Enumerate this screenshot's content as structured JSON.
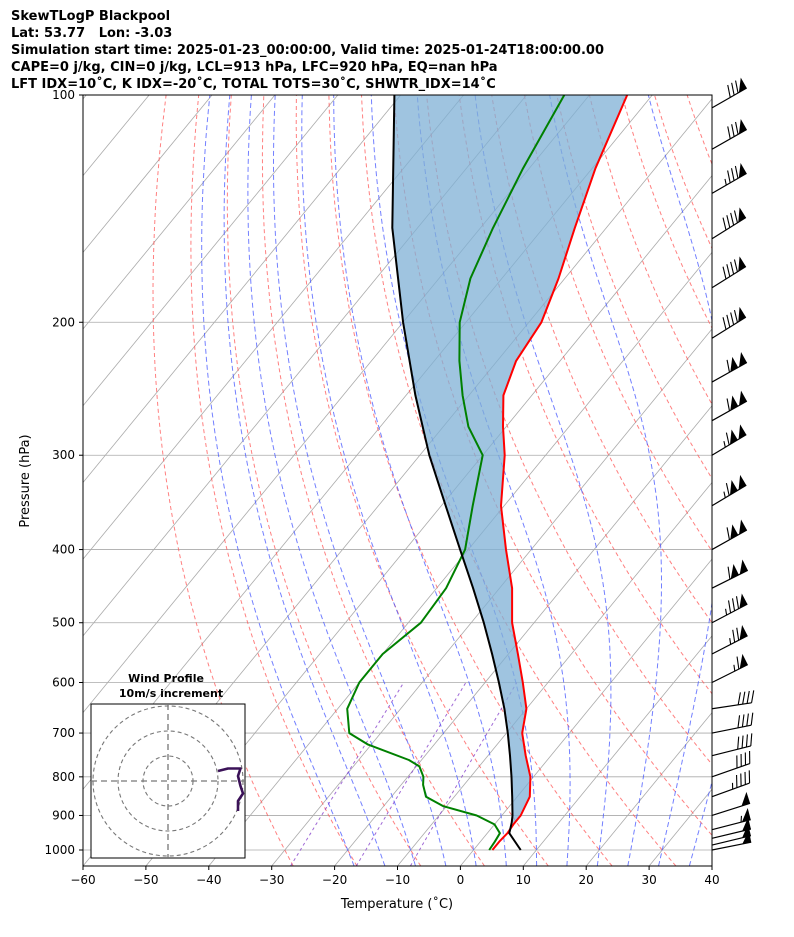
{
  "header": {
    "line1": "SkewTLogP Blackpool",
    "line2": "Lat: 53.77   Lon: -3.03",
    "line3": "Simulation start time: 2025-01-23_00:00:00, Valid time: 2025-01-24T18:00:00.00",
    "line4": "CAPE=0 j/kg, CIN=0 j/kg, LCL=913 hPa, LFC=920 hPa, EQ=nan hPa",
    "line5": "LFT IDX=10˚C, K IDX=-20˚C, TOTAL TOTS=30˚C, SHWTR_IDX=14˚C"
  },
  "colors": {
    "temperature": "#ff0000",
    "dewpoint": "#008000",
    "parcel": "#000000",
    "shade": "#7fb0d5",
    "dry_adiabat": "#ff5555",
    "moist_adiabat": "#4455ff",
    "mixing_ratio": "#8844cc",
    "isotherm": "#aaaaaa",
    "hodograph": "#3b1258"
  },
  "chart_data": {
    "type": "skewt",
    "xlabel": "Temperature (˚C)",
    "ylabel": "Pressure (hPa)",
    "xlim": [
      -60,
      40
    ],
    "ylim": [
      1050,
      100
    ],
    "log_y": true,
    "grid": true,
    "x_ticks": [
      "−60",
      "−50",
      "−40",
      "−30",
      "−20",
      "−10",
      "0",
      "10",
      "20",
      "30",
      "40"
    ],
    "y_ticks": [
      100,
      200,
      300,
      400,
      500,
      600,
      700,
      800,
      900,
      1000
    ],
    "temperature_profile": [
      {
        "p": 1000,
        "t": 3.0
      },
      {
        "p": 975,
        "t": 3.0
      },
      {
        "p": 950,
        "t": 3.2
      },
      {
        "p": 925,
        "t": 3.0
      },
      {
        "p": 900,
        "t": 3.0
      },
      {
        "p": 850,
        "t": 2.0
      },
      {
        "p": 800,
        "t": -0.5
      },
      {
        "p": 750,
        "t": -4.0
      },
      {
        "p": 700,
        "t": -7.5
      },
      {
        "p": 650,
        "t": -10.0
      },
      {
        "p": 600,
        "t": -14.0
      },
      {
        "p": 550,
        "t": -18.5
      },
      {
        "p": 500,
        "t": -23.5
      },
      {
        "p": 450,
        "t": -28.0
      },
      {
        "p": 400,
        "t": -34.0
      },
      {
        "p": 350,
        "t": -40.5
      },
      {
        "p": 300,
        "t": -46.5
      },
      {
        "p": 275,
        "t": -50.5
      },
      {
        "p": 250,
        "t": -54.5
      },
      {
        "p": 225,
        "t": -57.0
      },
      {
        "p": 200,
        "t": -58.0
      },
      {
        "p": 175,
        "t": -61.0
      },
      {
        "p": 150,
        "t": -65.0
      },
      {
        "p": 125,
        "t": -69.5
      },
      {
        "p": 100,
        "t": -74.0
      }
    ],
    "dewpoint_profile": [
      {
        "p": 1000,
        "t": 2.5
      },
      {
        "p": 975,
        "t": 2.3
      },
      {
        "p": 950,
        "t": 2.0
      },
      {
        "p": 925,
        "t": 0.0
      },
      {
        "p": 900,
        "t": -4.0
      },
      {
        "p": 875,
        "t": -10.5
      },
      {
        "p": 850,
        "t": -14.5
      },
      {
        "p": 820,
        "t": -16.5
      },
      {
        "p": 800,
        "t": -17.5
      },
      {
        "p": 775,
        "t": -19.5
      },
      {
        "p": 760,
        "t": -22.0
      },
      {
        "p": 725,
        "t": -30.5
      },
      {
        "p": 700,
        "t": -35.0
      },
      {
        "p": 650,
        "t": -38.5
      },
      {
        "p": 600,
        "t": -40.0
      },
      {
        "p": 550,
        "t": -40.0
      },
      {
        "p": 500,
        "t": -38.0
      },
      {
        "p": 450,
        "t": -38.5
      },
      {
        "p": 400,
        "t": -40.5
      },
      {
        "p": 350,
        "t": -45.0
      },
      {
        "p": 300,
        "t": -50.0
      },
      {
        "p": 275,
        "t": -56.0
      },
      {
        "p": 250,
        "t": -61.0
      },
      {
        "p": 225,
        "t": -66.0
      },
      {
        "p": 200,
        "t": -71.0
      },
      {
        "p": 175,
        "t": -75.0
      },
      {
        "p": 150,
        "t": -78.0
      },
      {
        "p": 125,
        "t": -81.0
      },
      {
        "p": 100,
        "t": -84.0
      }
    ],
    "parcel_profile": [
      {
        "p": 1000,
        "t": 7.5
      },
      {
        "p": 950,
        "t": 3.5
      },
      {
        "p": 920,
        "t": 2.5
      },
      {
        "p": 900,
        "t": 1.7
      },
      {
        "p": 850,
        "t": -0.8
      },
      {
        "p": 800,
        "t": -3.5
      },
      {
        "p": 750,
        "t": -6.5
      },
      {
        "p": 700,
        "t": -9.8
      },
      {
        "p": 650,
        "t": -13.5
      },
      {
        "p": 600,
        "t": -17.8
      },
      {
        "p": 550,
        "t": -22.6
      },
      {
        "p": 500,
        "t": -28.0
      },
      {
        "p": 450,
        "t": -34.2
      },
      {
        "p": 400,
        "t": -41.3
      },
      {
        "p": 350,
        "t": -49.3
      },
      {
        "p": 300,
        "t": -58.5
      },
      {
        "p": 250,
        "t": -68.5
      },
      {
        "p": 200,
        "t": -80.0
      },
      {
        "p": 150,
        "t": -94.0
      },
      {
        "p": 100,
        "t": -111.0
      }
    ],
    "wind_barbs": [
      {
        "p": 1000,
        "u": -25,
        "v": -5
      },
      {
        "p": 985,
        "u": -25,
        "v": -6
      },
      {
        "p": 965,
        "u": -25,
        "v": -6
      },
      {
        "p": 940,
        "u": -27,
        "v": -7
      },
      {
        "p": 900,
        "u": -25,
        "v": -8
      },
      {
        "p": 850,
        "u": -22,
        "v": -8
      },
      {
        "p": 800,
        "u": -20,
        "v": -7
      },
      {
        "p": 750,
        "u": -20,
        "v": -5
      },
      {
        "p": 700,
        "u": -20,
        "v": -4
      },
      {
        "p": 650,
        "u": -20,
        "v": -3
      },
      {
        "p": 600,
        "u": -30,
        "v": -15
      },
      {
        "p": 550,
        "u": -35,
        "v": -18
      },
      {
        "p": 500,
        "u": -38,
        "v": -20
      },
      {
        "p": 450,
        "u": -50,
        "v": -25
      },
      {
        "p": 400,
        "u": -50,
        "v": -28
      },
      {
        "p": 350,
        "u": -50,
        "v": -30
      },
      {
        "p": 300,
        "u": -50,
        "v": -30
      },
      {
        "p": 270,
        "u": -50,
        "v": -28
      },
      {
        "p": 240,
        "u": -50,
        "v": -28
      },
      {
        "p": 210,
        "u": -40,
        "v": -25
      },
      {
        "p": 180,
        "u": -40,
        "v": -25
      },
      {
        "p": 155,
        "u": -40,
        "v": -25
      },
      {
        "p": 135,
        "u": -38,
        "v": -22
      },
      {
        "p": 118,
        "u": -35,
        "v": -20
      },
      {
        "p": 104,
        "u": -35,
        "v": -20
      }
    ],
    "hodograph": {
      "title_line1": "Wind Profile",
      "title_line2": "10m/s increment",
      "ring_increment_ms": 10,
      "rings": 3,
      "points": [
        {
          "u": 28,
          "v": -12
        },
        {
          "u": 28,
          "v": -8
        },
        {
          "u": 30,
          "v": -5
        },
        {
          "u": 29,
          "v": -2
        },
        {
          "u": 28,
          "v": 2
        },
        {
          "u": 29,
          "v": 5
        },
        {
          "u": 27,
          "v": 5
        },
        {
          "u": 24,
          "v": 5
        },
        {
          "u": 20,
          "v": 4
        }
      ]
    }
  }
}
